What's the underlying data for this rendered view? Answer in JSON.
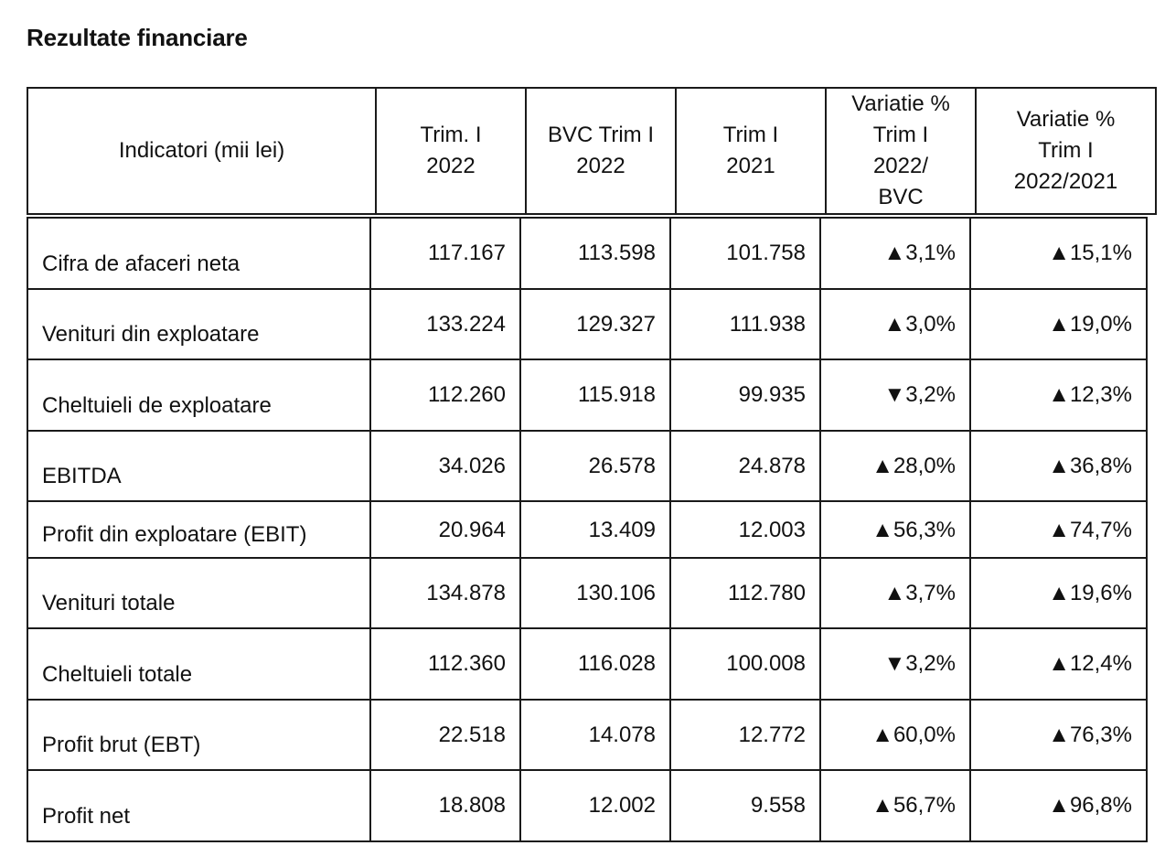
{
  "title": "Rezultate financiare",
  "columns": [
    "Indicatori (mii lei)",
    "Trim. I\n2022",
    "BVC Trim I\n2022",
    "Trim I\n2021",
    "Variatie %\nTrim I\n2022/\nBVC",
    "Variatie %\nTrim I\n2022/2021"
  ],
  "rows": [
    {
      "label": "Cifra de afaceri neta",
      "trim1_2022": "117.167",
      "bvc_trim1_2022": "113.598",
      "trim1_2021": "101.758",
      "var_bvc": "▲3,1%",
      "var_2021": "▲15,1%"
    },
    {
      "label": "Venituri din exploatare",
      "trim1_2022": "133.224",
      "bvc_trim1_2022": "129.327",
      "trim1_2021": "111.938",
      "var_bvc": "▲3,0%",
      "var_2021": "▲19,0%"
    },
    {
      "label": "Cheltuieli de exploatare",
      "trim1_2022": "112.260",
      "bvc_trim1_2022": "115.918",
      "trim1_2021": "99.935",
      "var_bvc": "▼3,2%",
      "var_2021": "▲12,3%"
    },
    {
      "label": "EBITDA",
      "trim1_2022": "34.026",
      "bvc_trim1_2022": "26.578",
      "trim1_2021": "24.878",
      "var_bvc": "▲28,0%",
      "var_2021": "▲36,8%"
    },
    {
      "label": "Profit din exploatare (EBIT)",
      "trim1_2022": "20.964",
      "bvc_trim1_2022": "13.409",
      "trim1_2021": "12.003",
      "var_bvc": "▲56,3%",
      "var_2021": "▲74,7%"
    },
    {
      "label": "Venituri totale",
      "trim1_2022": "134.878",
      "bvc_trim1_2022": "130.106",
      "trim1_2021": "112.780",
      "var_bvc": "▲3,7%",
      "var_2021": "▲19,6%"
    },
    {
      "label": "Cheltuieli totale",
      "trim1_2022": "112.360",
      "bvc_trim1_2022": "116.028",
      "trim1_2021": "100.008",
      "var_bvc": "▼3,2%",
      "var_2021": "▲12,4%"
    },
    {
      "label": "Profit brut (EBT)",
      "trim1_2022": "22.518",
      "bvc_trim1_2022": "14.078",
      "trim1_2021": "12.772",
      "var_bvc": "▲60,0%",
      "var_2021": "▲76,3%"
    },
    {
      "label": "Profit net",
      "trim1_2022": "18.808",
      "bvc_trim1_2022": "12.002",
      "trim1_2021": "9.558",
      "var_bvc": "▲56,7%",
      "var_2021": "▲96,8%"
    }
  ]
}
